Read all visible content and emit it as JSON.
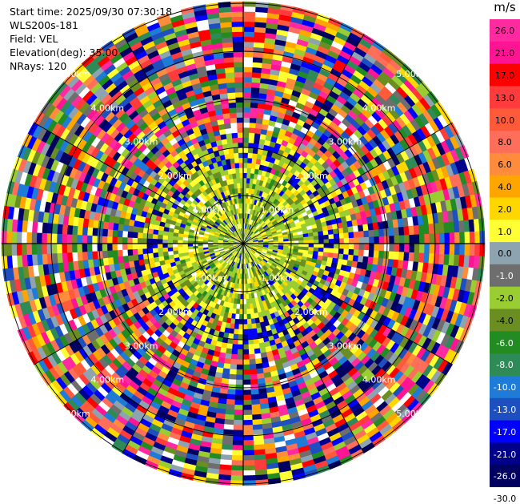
{
  "header": {
    "start_time": "Start time: 2025/09/30 07:30:18",
    "instrument": "WLS200s-181",
    "field": "Field: VEL",
    "elevation": "Elevation(deg): 35.00",
    "nrays": "NRays: 120"
  },
  "colorbar": {
    "unit": "m/s",
    "labels": [
      "26.0",
      "21.0",
      "17.0",
      "13.0",
      "10.0",
      "8.0",
      "6.0",
      "4.0",
      "2.0",
      "1.0",
      "0.0",
      "-1.0",
      "-2.0",
      "-4.0",
      "-6.0",
      "-8.0",
      "-10.0",
      "-13.0",
      "-17.0",
      "-21.0",
      "-26.0",
      "-30.0"
    ],
    "colors": [
      "#ff2aa0",
      "#ff1493",
      "#ff0000",
      "#ff3b3b",
      "#ff5a3a",
      "#ff6e5a",
      "#ff8c3c",
      "#ffa500",
      "#ffd700",
      "#ffff33",
      "#8ea3b0",
      "#6e6e6e",
      "#9acd32",
      "#6b8e23",
      "#228b22",
      "#2e8b57",
      "#1e7bd8",
      "#1e4fc0",
      "#0000ff",
      "#00008b",
      "#000060"
    ]
  },
  "chart_data": {
    "type": "heatmap",
    "title": "",
    "field": "VEL",
    "units": "m/s",
    "nrays": 120,
    "elevation_deg": 35.0,
    "range_rings": [
      "1.00km",
      "2.00km",
      "3.00km",
      "4.00km",
      "5.00km"
    ],
    "value_range": [
      -30.0,
      26.0
    ]
  }
}
